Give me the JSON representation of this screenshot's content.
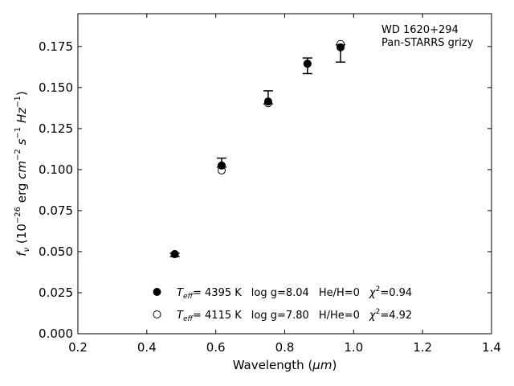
{
  "chart_data": {
    "type": "scatter",
    "title": "",
    "xlabel": "Wavelength",
    "xlabel_unit": "μm",
    "ylabel": "erg",
    "xlim": [
      0.2,
      1.4
    ],
    "ylim": [
      0.0,
      0.195
    ],
    "xticks": [
      0.2,
      0.4,
      0.6,
      0.8,
      1.0,
      1.2,
      1.4
    ],
    "xtick_labels": [
      "0.2",
      "0.4",
      "0.6",
      "0.8",
      "1.0",
      "1.2",
      "1.4"
    ],
    "yticks": [
      0.0,
      0.025,
      0.05,
      0.075,
      0.1,
      0.125,
      0.15,
      0.175
    ],
    "ytick_labels": [
      "0.000",
      "0.025",
      "0.050",
      "0.075",
      "0.100",
      "0.125",
      "0.150",
      "0.175"
    ],
    "grid": false,
    "legend_position": "bottom-center",
    "annotation": [
      "WD 1620+294",
      "Pan-STARRS grizy"
    ],
    "observed": {
      "x": [
        0.481,
        0.617,
        0.752,
        0.866,
        0.962
      ],
      "y": [
        0.0483,
        0.1025,
        0.1425,
        0.1635,
        0.1745
      ],
      "yerr_low": [
        0.0013,
        0.001,
        0.0025,
        0.005,
        0.009
      ],
      "yerr_high": [
        0.0008,
        0.0045,
        0.0055,
        0.0045,
        0.0015
      ]
    },
    "series": [
      {
        "marker": "filled",
        "teff": "4395 K",
        "logg": "log g=8.04",
        "composition": "He/H=0",
        "chi2": "=0.94",
        "x": [
          0.481,
          0.617,
          0.752,
          0.866,
          0.962
        ],
        "y": [
          0.0485,
          0.1025,
          0.1415,
          0.1645,
          0.1745
        ]
      },
      {
        "marker": "open",
        "teff": "4115 K",
        "logg": "log g=7.80",
        "composition": "H/He=0",
        "chi2": "=4.92",
        "x": [
          0.481,
          0.617,
          0.752,
          0.866,
          0.962
        ],
        "y": [
          0.0485,
          0.0995,
          0.1405,
          0.1645,
          0.1765
        ]
      }
    ]
  }
}
